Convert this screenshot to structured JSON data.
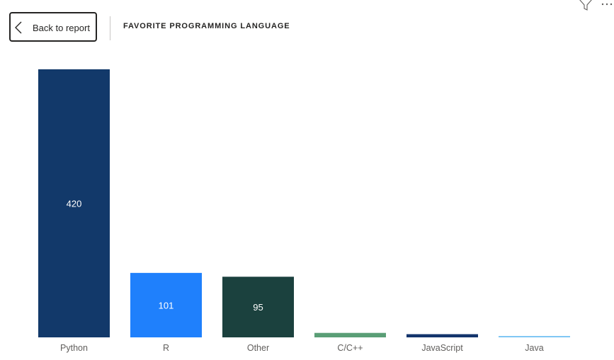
{
  "header": {
    "back_label": "Back to report",
    "page_title": "FAVORITE PROGRAMMING LANGUAGE"
  },
  "icons": {
    "back": "chevron-left-icon",
    "filter": "filter-icon",
    "more": "more-options-icon"
  },
  "colors": {
    "Python": "#12396a",
    "R": "#1f80fc",
    "Other": "#1b413e",
    "C/C++": "#5a9e76",
    "JavaScript": "#13346c",
    "Java": "#80c7f4",
    "label_dark_bg": "#ffffff",
    "axis_text": "#605e5c"
  },
  "chart_data": {
    "type": "bar",
    "title": "FAVORITE PROGRAMMING LANGUAGE",
    "categories": [
      "Python",
      "R",
      "Other",
      "C/C++",
      "JavaScript",
      "Java"
    ],
    "values": [
      420,
      101,
      95,
      7,
      5,
      1
    ],
    "data_labels": [
      "420",
      "101",
      "95",
      "",
      "",
      ""
    ],
    "ylim": [
      0,
      420
    ],
    "grid": false,
    "legend": "none",
    "xlabel": "",
    "ylabel": ""
  }
}
